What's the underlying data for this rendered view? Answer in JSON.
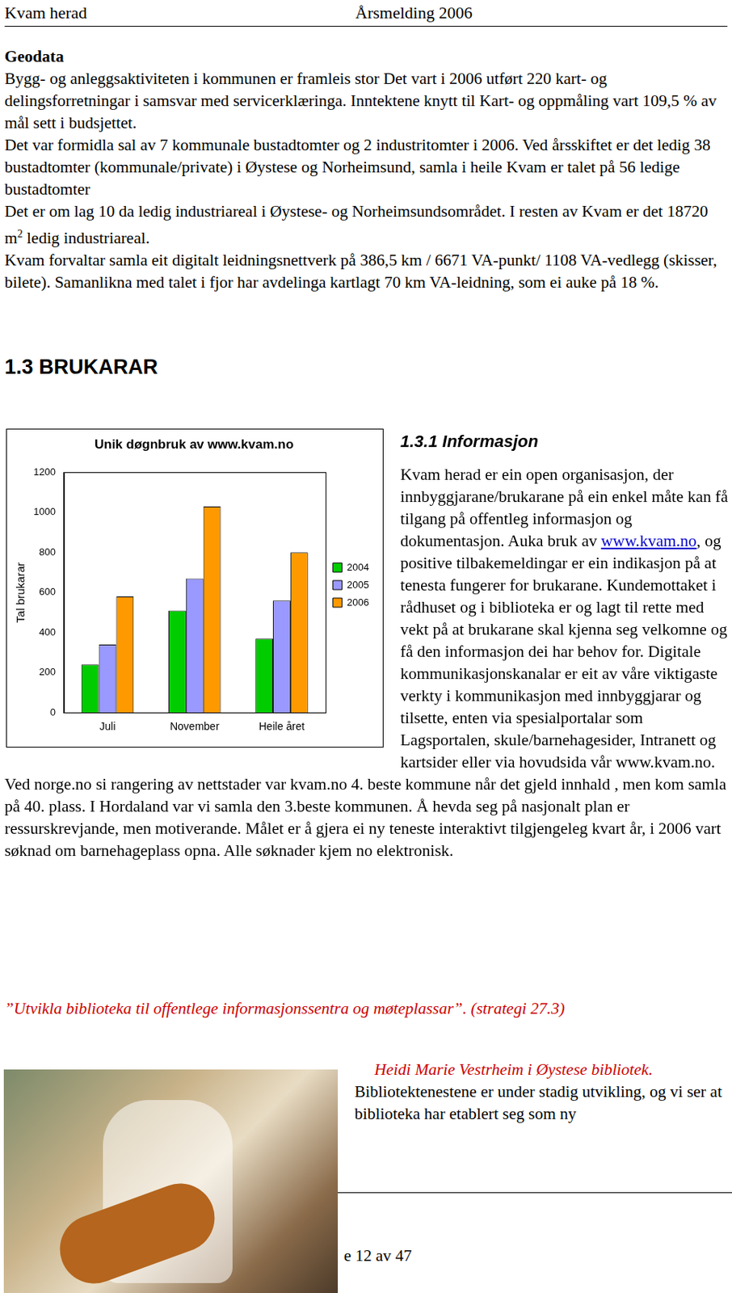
{
  "header": {
    "left": "Kvam herad",
    "right": "Årsmelding 2006"
  },
  "geodata": {
    "title": "Geodata",
    "paragraphs": [
      {
        "text": "Bygg- og anleggsaktiviteten  i kommunen er framleis stor Det vart i 2006 utført  220 kart- og delingsforretningar i samsvar med servicerklæringa. Inntektene knytt til   Kart- og oppmåling vart 109,5 %  av mål sett i budsjettet."
      },
      {
        "text": "Det var formidla sal av 7 kommunale bustadtomter og 2 industritomter i 2006. Ved årsskiftet er det ledig 38 bustadtomter (kommunale/private) i Øystese og Norheimsund, samla i heile Kvam er talet på 56 ledige bustadtomter"
      },
      {
        "text": "Det er om lag  10 da ledig industriareal i Øystese- og Norheimsundsområdet. I resten av Kvam er det 18720 m",
        "sup": "2",
        "after": " ledig industriareal."
      },
      {
        "text": "Kvam  forvaltar samla eit digitalt leidningsnettverk på 386,5 km / 6671 VA-punkt/ 1108 VA-vedlegg (skisser, bilete). Samanlikna med talet i fjor har avdelinga kartlagt 70 km VA-leidning, som ei auke på 18 %."
      }
    ]
  },
  "heading": "1.3 BRUKARAR",
  "subheading": "1.3.1  Informasjon",
  "chart_data": {
    "type": "bar",
    "title": "Unik døgnbruk av www.kvam.no",
    "y_label": "Tal brukarar",
    "categories": [
      "Juli",
      "November",
      "Heile året"
    ],
    "series": [
      {
        "name": "2004",
        "color": "#00cc00",
        "values": [
          240,
          510,
          370
        ]
      },
      {
        "name": "2005",
        "color": "#9999ff",
        "values": [
          340,
          670,
          560
        ]
      },
      {
        "name": "2006",
        "color": "#ff9900",
        "values": [
          580,
          1030,
          800
        ]
      }
    ],
    "ylim": [
      0,
      1200
    ],
    "yticks": [
      0,
      200,
      400,
      600,
      800,
      1000,
      1200
    ],
    "grid": false,
    "legend": "right"
  },
  "info_paragraph": {
    "before": "Kvam herad er ein  open organisasjon, der innbyggjarane/brukarane  på ein enkel måte kan få tilgang  på offentleg informasjon og dokumentasjon. Auka bruk  av ",
    "link": "www.kvam.no",
    "after": ", og positive tilbakemeldingar er ein indikasjon på at  tenesta fungerer for brukarane. Kundemottaket i rådhuset  og i biblioteka er og lagt til rette med vekt på at brukarane skal kjenna  seg velkomne og få den informasjon dei  har behov for. Digitale kommunikasjonskanalar er eit av våre viktigaste verkty i kommunikasjon med innbyggjarar og tilsette, enten via spesialportalar som Lagsportalen, skule/barnehagesider, Intranett og kartsider eller via hovudsida vår www.kvam.no. Ved norge.no si rangering av nettstader var kvam.no 4. beste kommune når det gjeld innhald , men kom samla  på 40. plass. I Hordaland var vi samla  den 3.beste kommunen. Å hevda seg  på nasjonalt plan  er ressurskrevjande, men motiverande. Målet er å gjera ei ny teneste interaktivt tilgjengeleg kvart år, i 2006 vart søknad om barnehageplass opna. Alle søknader kjem no elektronisk."
  },
  "quote": "”Utvikla biblioteka til offentlege informasjonssentra og møteplassar”.   (strategi 27.3)",
  "caption": "Heidi Marie Vestrheim i Øystese bibliotek.",
  "caption_text": "Bibliotektenestene er under stadig utvikling, og vi ser at biblioteka har etablert seg som ny",
  "footer": "e 12 av 47"
}
